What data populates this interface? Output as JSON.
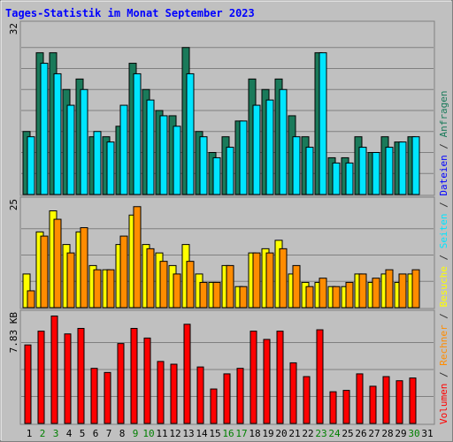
{
  "chart_data": {
    "type": "bar",
    "title": "Tages-Statistik im Monat September 2023",
    "days": [
      "1",
      "2",
      "3",
      "4",
      "5",
      "6",
      "7",
      "8",
      "9",
      "10",
      "11",
      "12",
      "13",
      "14",
      "15",
      "16",
      "17",
      "18",
      "19",
      "20",
      "21",
      "22",
      "23",
      "24",
      "25",
      "26",
      "27",
      "28",
      "29",
      "30",
      "31"
    ],
    "weekend_days": [
      2,
      3,
      9,
      10,
      16,
      17,
      23,
      24,
      30
    ],
    "panels": [
      {
        "id": "hits",
        "ymax_label": "32",
        "ymax": 32,
        "series": [
          {
            "name": "Anfragen",
            "color": "#1a7a5a",
            "values": [
              12,
              27,
              27,
              20,
              22,
              11,
              11,
              13,
              25,
              20,
              16,
              15,
              28,
              12,
              8,
              11,
              14,
              22,
              20,
              22,
              15,
              11,
              27,
              7,
              7,
              11,
              8,
              11,
              10,
              11,
              0
            ]
          },
          {
            "name": "Dateien",
            "color": "#00e5ff",
            "values": [
              11,
              25,
              23,
              17,
              20,
              12,
              10,
              17,
              23,
              18,
              15,
              13,
              23,
              11,
              7,
              9,
              14,
              17,
              18,
              20,
              11,
              9,
              27,
              6,
              6,
              9,
              8,
              9,
              10,
              11,
              0
            ]
          }
        ]
      },
      {
        "id": "visits",
        "ymax_label": "25",
        "ymax": 25,
        "series": [
          {
            "name": "Seiten",
            "color": "#ffff00",
            "values": [
              8,
              18,
              23,
              15,
              18,
              10,
              9,
              15,
              22,
              15,
              13,
              10,
              15,
              8,
              6,
              10,
              5,
              13,
              14,
              16,
              8,
              6,
              6,
              5,
              5,
              8,
              6,
              8,
              6,
              8,
              0
            ]
          },
          {
            "name": "Besuche",
            "color": "#ff8c00",
            "values": [
              4,
              17,
              21,
              13,
              19,
              9,
              9,
              17,
              24,
              14,
              11,
              8,
              11,
              6,
              6,
              10,
              5,
              13,
              13,
              14,
              10,
              5,
              7,
              5,
              6,
              8,
              7,
              9,
              8,
              9,
              0
            ]
          }
        ]
      },
      {
        "id": "volume",
        "ymax_label": "7.83 KB",
        "ymax": 7.83,
        "series": [
          {
            "name": "Volumen",
            "color": "#ff0000",
            "values": [
              5.7,
              6.7,
              7.8,
              6.5,
              6.9,
              4.0,
              3.7,
              5.8,
              6.9,
              6.2,
              4.5,
              4.3,
              7.2,
              4.1,
              2.5,
              3.6,
              4.0,
              6.7,
              6.1,
              6.7,
              4.4,
              3.4,
              6.8,
              2.3,
              2.4,
              3.6,
              2.7,
              3.4,
              3.1,
              3.3,
              0
            ]
          }
        ]
      }
    ],
    "right_label_parts": [
      {
        "text": "Volumen",
        "color": "#ff0000"
      },
      {
        "text": " / ",
        "color": "#333333"
      },
      {
        "text": "Rechner",
        "color": "#ff8c00"
      },
      {
        "text": " / ",
        "color": "#333333"
      },
      {
        "text": "Besuche",
        "color": "#ffff00"
      },
      {
        "text": " / ",
        "color": "#333333"
      },
      {
        "text": "Seiten",
        "color": "#00e5ff"
      },
      {
        "text": " / ",
        "color": "#333333"
      },
      {
        "text": "Dateien",
        "color": "#0000ff"
      },
      {
        "text": " / ",
        "color": "#333333"
      },
      {
        "text": "Anfragen",
        "color": "#1a7a5a"
      }
    ],
    "colors": {
      "background": "#c0c0c0",
      "title": "#0000ff",
      "weekday_label": "#000000",
      "weekend_label": "#008000",
      "gridline": "#808080"
    }
  }
}
